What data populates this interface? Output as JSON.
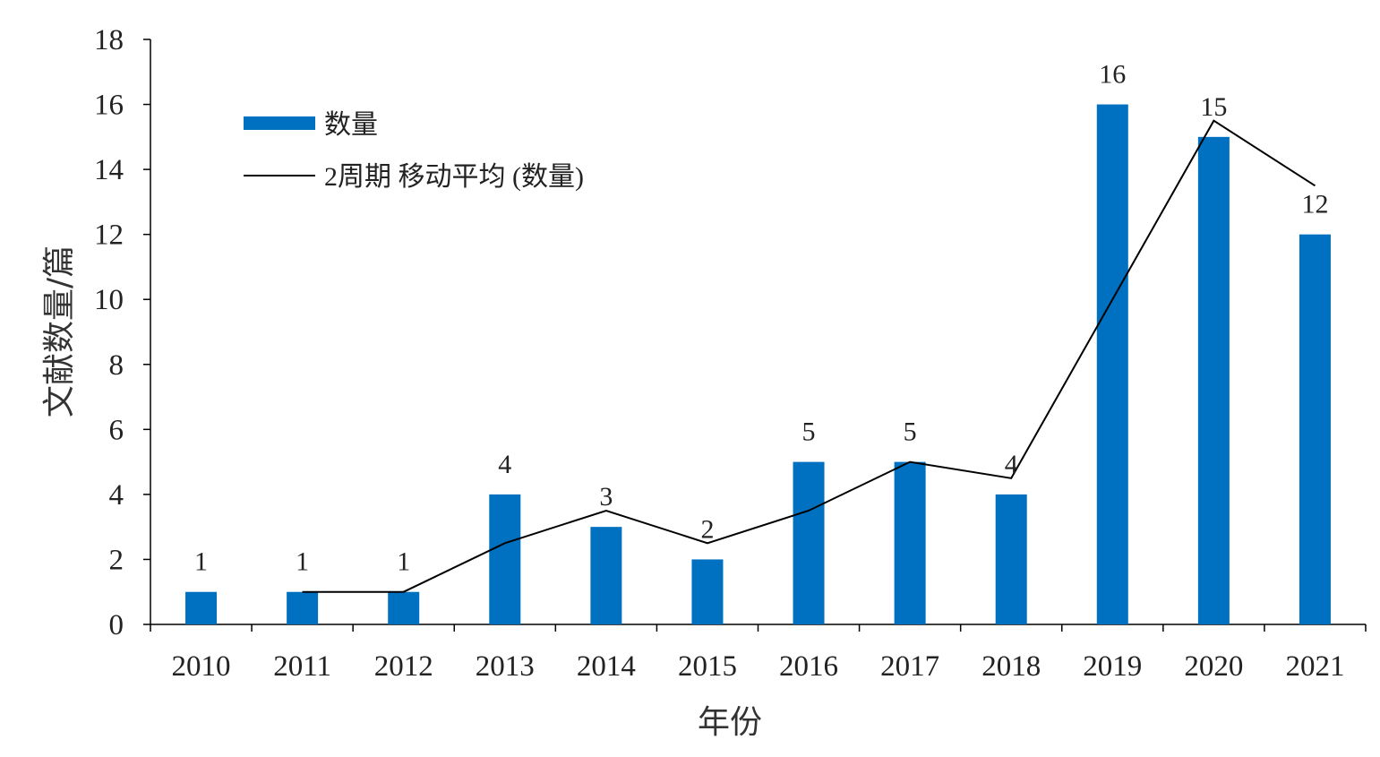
{
  "chart_data": {
    "type": "bar",
    "categories": [
      "2010",
      "2011",
      "2012",
      "2013",
      "2014",
      "2015",
      "2016",
      "2017",
      "2018",
      "2019",
      "2020",
      "2021"
    ],
    "series": [
      {
        "name": "数量",
        "type": "bar",
        "values": [
          1,
          1,
          1,
          4,
          3,
          2,
          5,
          5,
          4,
          16,
          15,
          12
        ]
      },
      {
        "name": "2周期 移动平均 (数量)",
        "type": "line",
        "values": [
          null,
          1,
          1,
          2.5,
          3.5,
          2.5,
          3.5,
          5,
          4.5,
          10,
          15.5,
          13.5
        ]
      }
    ],
    "data_labels": [
      "1",
      "1",
      "1",
      "4",
      "3",
      "2",
      "5",
      "5",
      "4",
      "16",
      "15",
      "12"
    ],
    "xlabel": "年份",
    "ylabel": "文献数量/篇",
    "ylim": [
      0,
      18
    ],
    "yticks": [
      0,
      2,
      4,
      6,
      8,
      10,
      12,
      14,
      16,
      18
    ],
    "grid": false,
    "legend_position": "top-left",
    "colors": {
      "bar": "#0070c0",
      "line": "#000000",
      "axis": "#000000"
    }
  }
}
